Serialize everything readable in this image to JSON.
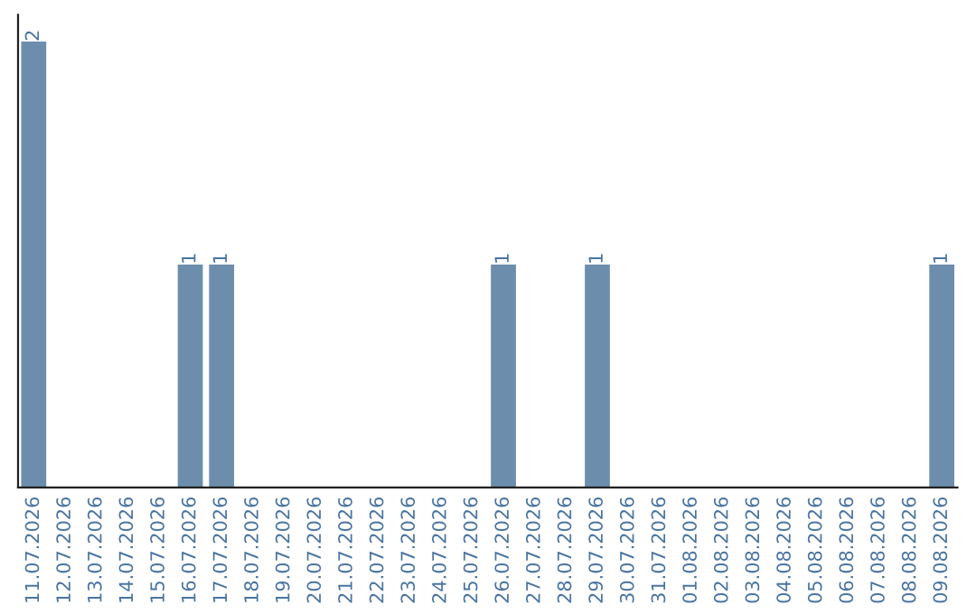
{
  "chart_data": {
    "type": "bar",
    "categories": [
      "11.07.2026",
      "12.07.2026",
      "13.07.2026",
      "14.07.2026",
      "15.07.2026",
      "16.07.2026",
      "17.07.2026",
      "18.07.2026",
      "19.07.2026",
      "20.07.2026",
      "21.07.2026",
      "22.07.2026",
      "23.07.2026",
      "24.07.2026",
      "25.07.2026",
      "26.07.2026",
      "27.07.2026",
      "28.07.2026",
      "29.07.2026",
      "30.07.2026",
      "31.07.2026",
      "01.08.2026",
      "02.08.2026",
      "03.08.2026",
      "04.08.2026",
      "05.08.2026",
      "06.08.2026",
      "07.08.2026",
      "08.08.2026",
      "09.08.2026"
    ],
    "values": [
      2,
      0,
      0,
      0,
      0,
      1,
      1,
      0,
      0,
      0,
      0,
      0,
      0,
      0,
      0,
      1,
      0,
      0,
      1,
      0,
      0,
      0,
      0,
      0,
      0,
      0,
      0,
      0,
      0,
      1
    ],
    "value_labels": [
      "2",
      null,
      null,
      null,
      null,
      "1",
      "1",
      null,
      null,
      null,
      null,
      null,
      null,
      null,
      null,
      "1",
      null,
      null,
      "1",
      null,
      null,
      null,
      null,
      null,
      null,
      null,
      null,
      null,
      null,
      "1"
    ],
    "color": "#6d8dad",
    "tick_labels": "x",
    "grid": false,
    "legend": false
  }
}
